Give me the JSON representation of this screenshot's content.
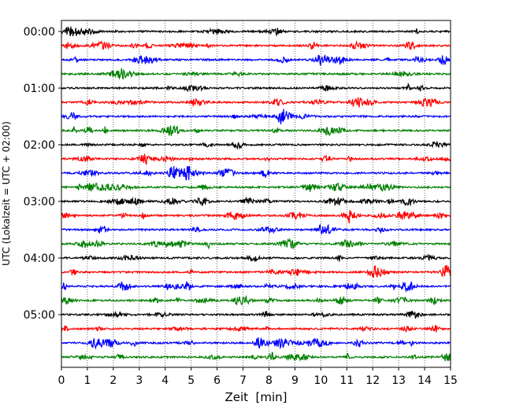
{
  "chart_data": {
    "type": "line",
    "title": "",
    "xlabel": "Zeit  [min]",
    "ylabel": "UTC (Lokalzeit = UTC + 02:00)",
    "xlim": [
      0,
      15
    ],
    "x_ticks": [
      "0",
      "1",
      "2",
      "3",
      "4",
      "5",
      "6",
      "7",
      "8",
      "9",
      "10",
      "11",
      "12",
      "13",
      "14",
      "15"
    ],
    "y_ticks": [
      "00:00",
      "01:00",
      "02:00",
      "03:00",
      "04:00",
      "05:00"
    ],
    "grid": "vertical dotted at each minute",
    "trace_interval_min": 15,
    "trace_colors": [
      "#000000",
      "#ff0000",
      "#0000ff",
      "#008000"
    ],
    "traces": [
      {
        "start": "00:00",
        "color": "#000000"
      },
      {
        "start": "00:15",
        "color": "#ff0000"
      },
      {
        "start": "00:30",
        "color": "#0000ff"
      },
      {
        "start": "00:45",
        "color": "#008000"
      },
      {
        "start": "01:00",
        "color": "#000000"
      },
      {
        "start": "01:15",
        "color": "#ff0000"
      },
      {
        "start": "01:30",
        "color": "#0000ff"
      },
      {
        "start": "01:45",
        "color": "#008000"
      },
      {
        "start": "02:00",
        "color": "#000000"
      },
      {
        "start": "02:15",
        "color": "#ff0000"
      },
      {
        "start": "02:30",
        "color": "#0000ff"
      },
      {
        "start": "02:45",
        "color": "#008000"
      },
      {
        "start": "03:00",
        "color": "#000000"
      },
      {
        "start": "03:15",
        "color": "#ff0000"
      },
      {
        "start": "03:30",
        "color": "#0000ff"
      },
      {
        "start": "03:45",
        "color": "#008000"
      },
      {
        "start": "04:00",
        "color": "#000000"
      },
      {
        "start": "04:15",
        "color": "#ff0000"
      },
      {
        "start": "04:30",
        "color": "#0000ff"
      },
      {
        "start": "04:45",
        "color": "#008000"
      },
      {
        "start": "05:00",
        "color": "#000000"
      },
      {
        "start": "05:15",
        "color": "#ff0000"
      },
      {
        "start": "05:30",
        "color": "#0000ff"
      },
      {
        "start": "05:45",
        "color": "#008000"
      }
    ]
  }
}
